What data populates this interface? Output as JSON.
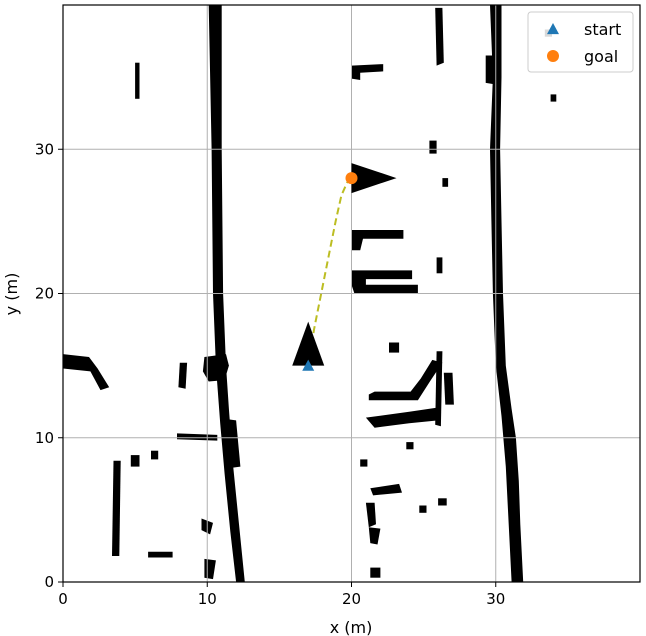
{
  "chart_data": {
    "type": "scatter",
    "xlabel": "x (m)",
    "ylabel": "y (m)",
    "xlim": [
      0,
      40
    ],
    "ylim": [
      0,
      40
    ],
    "xticks": [
      "0",
      "10",
      "20",
      "30"
    ],
    "yticks": [
      "0",
      "10",
      "20",
      "30"
    ],
    "grid": true,
    "legend_position": "top-right",
    "series": [
      {
        "name": "start",
        "marker": "triangle",
        "color": "#1f77b4",
        "points": [
          [
            17.0,
            15.0
          ]
        ]
      },
      {
        "name": "goal",
        "marker": "circle",
        "color": "#ff7f0e",
        "points": [
          [
            20.0,
            28.0
          ]
        ]
      }
    ],
    "path": {
      "style": "dashed",
      "color": "#bcbd22",
      "points": [
        [
          17.0,
          15.0
        ],
        [
          17.4,
          17.5
        ],
        [
          17.9,
          20.0
        ],
        [
          18.4,
          22.5
        ],
        [
          18.9,
          25.0
        ],
        [
          19.3,
          26.8
        ],
        [
          19.7,
          27.7
        ],
        [
          20.0,
          28.0
        ]
      ]
    },
    "heading_arrows": [
      {
        "name": "start-heading",
        "x": 17.0,
        "y": 15.0,
        "direction": "up",
        "color": "#000000"
      },
      {
        "name": "goal-heading",
        "x": 20.0,
        "y": 28.0,
        "direction": "right",
        "color": "#000000"
      }
    ],
    "occupancy_obstacles": [
      {
        "poly": [
          [
            10.1,
            40
          ],
          [
            11.0,
            40
          ],
          [
            11.0,
            30
          ],
          [
            11.1,
            20
          ],
          [
            11.3,
            15
          ],
          [
            11.5,
            12
          ],
          [
            11.8,
            8
          ],
          [
            12.2,
            4
          ],
          [
            12.6,
            0
          ],
          [
            12.0,
            0
          ],
          [
            11.6,
            3.5
          ],
          [
            11.2,
            7.5
          ],
          [
            10.9,
            11
          ],
          [
            10.6,
            15
          ],
          [
            10.4,
            20
          ],
          [
            10.3,
            30
          ]
        ]
      },
      {
        "poly": [
          [
            29.6,
            40
          ],
          [
            30.4,
            40
          ],
          [
            30.4,
            35
          ],
          [
            30.3,
            30
          ],
          [
            30.4,
            25
          ],
          [
            30.5,
            20
          ],
          [
            30.7,
            15
          ],
          [
            31.1,
            12
          ],
          [
            31.4,
            10
          ],
          [
            31.6,
            7
          ],
          [
            31.7,
            4
          ],
          [
            31.9,
            0
          ],
          [
            31.1,
            0
          ],
          [
            30.9,
            4
          ],
          [
            30.7,
            8
          ],
          [
            30.4,
            11.5
          ],
          [
            30.0,
            15
          ],
          [
            29.8,
            20
          ],
          [
            29.7,
            25
          ],
          [
            29.6,
            30
          ],
          [
            29.8,
            35
          ]
        ]
      },
      {
        "poly": [
          [
            0,
            15.8
          ],
          [
            1.8,
            15.6
          ],
          [
            2.4,
            14.8
          ],
          [
            3.2,
            13.5
          ],
          [
            2.6,
            13.3
          ],
          [
            1.9,
            14.6
          ],
          [
            0,
            14.8
          ]
        ]
      },
      {
        "poly": [
          [
            9.8,
            15.6
          ],
          [
            11.3,
            15.8
          ],
          [
            11.5,
            15.0
          ],
          [
            11.2,
            14.0
          ],
          [
            10.1,
            13.9
          ],
          [
            9.7,
            14.6
          ]
        ]
      },
      {
        "poly": [
          [
            11.3,
            11.3
          ],
          [
            12.0,
            11.2
          ],
          [
            12.3,
            8.0
          ],
          [
            11.6,
            7.9
          ],
          [
            11.2,
            9.8
          ]
        ]
      },
      {
        "poly": [
          [
            20.0,
            24.4
          ],
          [
            23.6,
            24.4
          ],
          [
            23.6,
            23.8
          ],
          [
            20.8,
            23.8
          ],
          [
            20.6,
            23.0
          ],
          [
            20.0,
            23.0
          ]
        ]
      },
      {
        "poly": [
          [
            20.0,
            21.6
          ],
          [
            24.2,
            21.6
          ],
          [
            24.2,
            21.0
          ],
          [
            21.0,
            21.0
          ],
          [
            21.0,
            20.6
          ],
          [
            24.6,
            20.6
          ],
          [
            24.6,
            20.0
          ],
          [
            20.2,
            20.0
          ],
          [
            20.0,
            20.6
          ]
        ]
      },
      {
        "poly": [
          [
            21.2,
            12.6
          ],
          [
            24.6,
            12.6
          ],
          [
            25.5,
            14.0
          ],
          [
            26.3,
            15.2
          ],
          [
            25.6,
            15.4
          ],
          [
            24.8,
            14.1
          ],
          [
            24.1,
            13.2
          ],
          [
            21.6,
            13.2
          ],
          [
            21.2,
            13.0
          ]
        ]
      },
      {
        "poly": [
          [
            21.0,
            11.4
          ],
          [
            24.0,
            11.8
          ],
          [
            26.0,
            12.1
          ],
          [
            26.0,
            11.2
          ],
          [
            24.0,
            11.0
          ],
          [
            21.6,
            10.7
          ]
        ]
      },
      {
        "poly": [
          [
            20.0,
            35.8
          ],
          [
            22.2,
            35.9
          ],
          [
            22.2,
            35.4
          ],
          [
            20.6,
            35.3
          ],
          [
            20.6,
            34.8
          ],
          [
            20.0,
            34.9
          ]
        ]
      },
      {
        "poly": [
          [
            25.8,
            39.8
          ],
          [
            26.3,
            39.8
          ],
          [
            26.4,
            36.0
          ],
          [
            25.9,
            35.8
          ]
        ]
      },
      {
        "poly": [
          [
            29.3,
            36.5
          ],
          [
            29.9,
            36.5
          ],
          [
            29.9,
            34.5
          ],
          [
            29.3,
            34.6
          ]
        ]
      },
      {
        "poly": [
          [
            21.3,
            6.5
          ],
          [
            23.3,
            6.8
          ],
          [
            23.5,
            6.2
          ],
          [
            21.5,
            6.0
          ]
        ]
      },
      {
        "poly": [
          [
            21.0,
            5.5
          ],
          [
            21.6,
            5.5
          ],
          [
            21.7,
            4.0
          ],
          [
            21.2,
            3.8
          ]
        ]
      },
      {
        "poly": [
          [
            21.2,
            3.8
          ],
          [
            22.0,
            3.7
          ],
          [
            21.8,
            2.6
          ],
          [
            21.3,
            2.7
          ]
        ]
      },
      {
        "poly": [
          [
            3.5,
            8.4
          ],
          [
            4.0,
            8.4
          ],
          [
            3.9,
            1.8
          ],
          [
            3.4,
            1.8
          ]
        ]
      },
      {
        "poly": [
          [
            9.6,
            4.4
          ],
          [
            10.4,
            4.1
          ],
          [
            10.2,
            3.3
          ],
          [
            9.6,
            3.6
          ]
        ]
      },
      {
        "poly": [
          [
            9.8,
            1.6
          ],
          [
            10.6,
            1.5
          ],
          [
            10.4,
            0.2
          ],
          [
            9.8,
            0.3
          ]
        ]
      },
      {
        "poly": [
          [
            5.9,
            2.1
          ],
          [
            7.6,
            2.1
          ],
          [
            7.6,
            1.7
          ],
          [
            5.9,
            1.7
          ]
        ]
      },
      {
        "poly": [
          [
            25.9,
            16.0
          ],
          [
            26.3,
            16.0
          ],
          [
            26.2,
            10.8
          ],
          [
            25.8,
            10.9
          ]
        ]
      },
      {
        "poly": [
          [
            26.4,
            14.5
          ],
          [
            27.0,
            14.5
          ],
          [
            27.1,
            12.3
          ],
          [
            26.5,
            12.3
          ]
        ]
      },
      {
        "poly": [
          [
            22.6,
            16.6
          ],
          [
            23.3,
            16.6
          ],
          [
            23.3,
            15.9
          ],
          [
            22.6,
            15.9
          ]
        ]
      },
      {
        "poly": [
          [
            25.4,
            30.6
          ],
          [
            25.9,
            30.6
          ],
          [
            25.9,
            29.7
          ],
          [
            25.4,
            29.7
          ]
        ]
      },
      {
        "poly": [
          [
            26.3,
            28.0
          ],
          [
            26.7,
            28.0
          ],
          [
            26.7,
            27.4
          ],
          [
            26.3,
            27.4
          ]
        ]
      },
      {
        "poly": [
          [
            7.9,
            10.3
          ],
          [
            10.7,
            10.2
          ],
          [
            10.7,
            9.8
          ],
          [
            7.9,
            9.9
          ]
        ]
      },
      {
        "poly": [
          [
            4.7,
            8.8
          ],
          [
            5.3,
            8.8
          ],
          [
            5.3,
            8.0
          ],
          [
            4.7,
            8.0
          ]
        ]
      },
      {
        "poly": [
          [
            6.1,
            9.1
          ],
          [
            6.6,
            9.1
          ],
          [
            6.6,
            8.5
          ],
          [
            6.1,
            8.5
          ]
        ]
      },
      {
        "poly": [
          [
            23.8,
            9.7
          ],
          [
            24.3,
            9.7
          ],
          [
            24.3,
            9.2
          ],
          [
            23.8,
            9.2
          ]
        ]
      },
      {
        "poly": [
          [
            20.6,
            8.5
          ],
          [
            21.1,
            8.5
          ],
          [
            21.1,
            8.0
          ],
          [
            20.6,
            8.0
          ]
        ]
      },
      {
        "poly": [
          [
            26.0,
            5.8
          ],
          [
            26.6,
            5.8
          ],
          [
            26.6,
            5.3
          ],
          [
            26.0,
            5.3
          ]
        ]
      },
      {
        "poly": [
          [
            24.7,
            5.3
          ],
          [
            25.2,
            5.3
          ],
          [
            25.2,
            4.8
          ],
          [
            24.7,
            4.8
          ]
        ]
      },
      {
        "poly": [
          [
            8.1,
            15.2
          ],
          [
            8.6,
            15.2
          ],
          [
            8.5,
            13.4
          ],
          [
            8.0,
            13.5
          ]
        ]
      },
      {
        "poly": [
          [
            25.9,
            22.5
          ],
          [
            26.3,
            22.5
          ],
          [
            26.3,
            21.4
          ],
          [
            25.9,
            21.4
          ]
        ]
      },
      {
        "poly": [
          [
            21.3,
            1.0
          ],
          [
            22.0,
            1.0
          ],
          [
            22.0,
            0.3
          ],
          [
            21.3,
            0.3
          ]
        ]
      },
      {
        "poly": [
          [
            5.0,
            36.0
          ],
          [
            5.3,
            36.0
          ],
          [
            5.3,
            33.5
          ],
          [
            5.0,
            33.5
          ]
        ]
      },
      {
        "poly": [
          [
            33.4,
            38.3
          ],
          [
            33.9,
            38.3
          ],
          [
            33.9,
            37.8
          ],
          [
            33.4,
            37.8
          ]
        ]
      },
      {
        "poly": [
          [
            30.9,
            7.3
          ],
          [
            31.2,
            7.3
          ],
          [
            31.2,
            6.9
          ],
          [
            30.9,
            6.9
          ]
        ]
      },
      {
        "poly": [
          [
            33.8,
            33.8
          ],
          [
            34.2,
            33.8
          ],
          [
            34.2,
            33.3
          ],
          [
            33.8,
            33.3
          ]
        ]
      }
    ]
  }
}
